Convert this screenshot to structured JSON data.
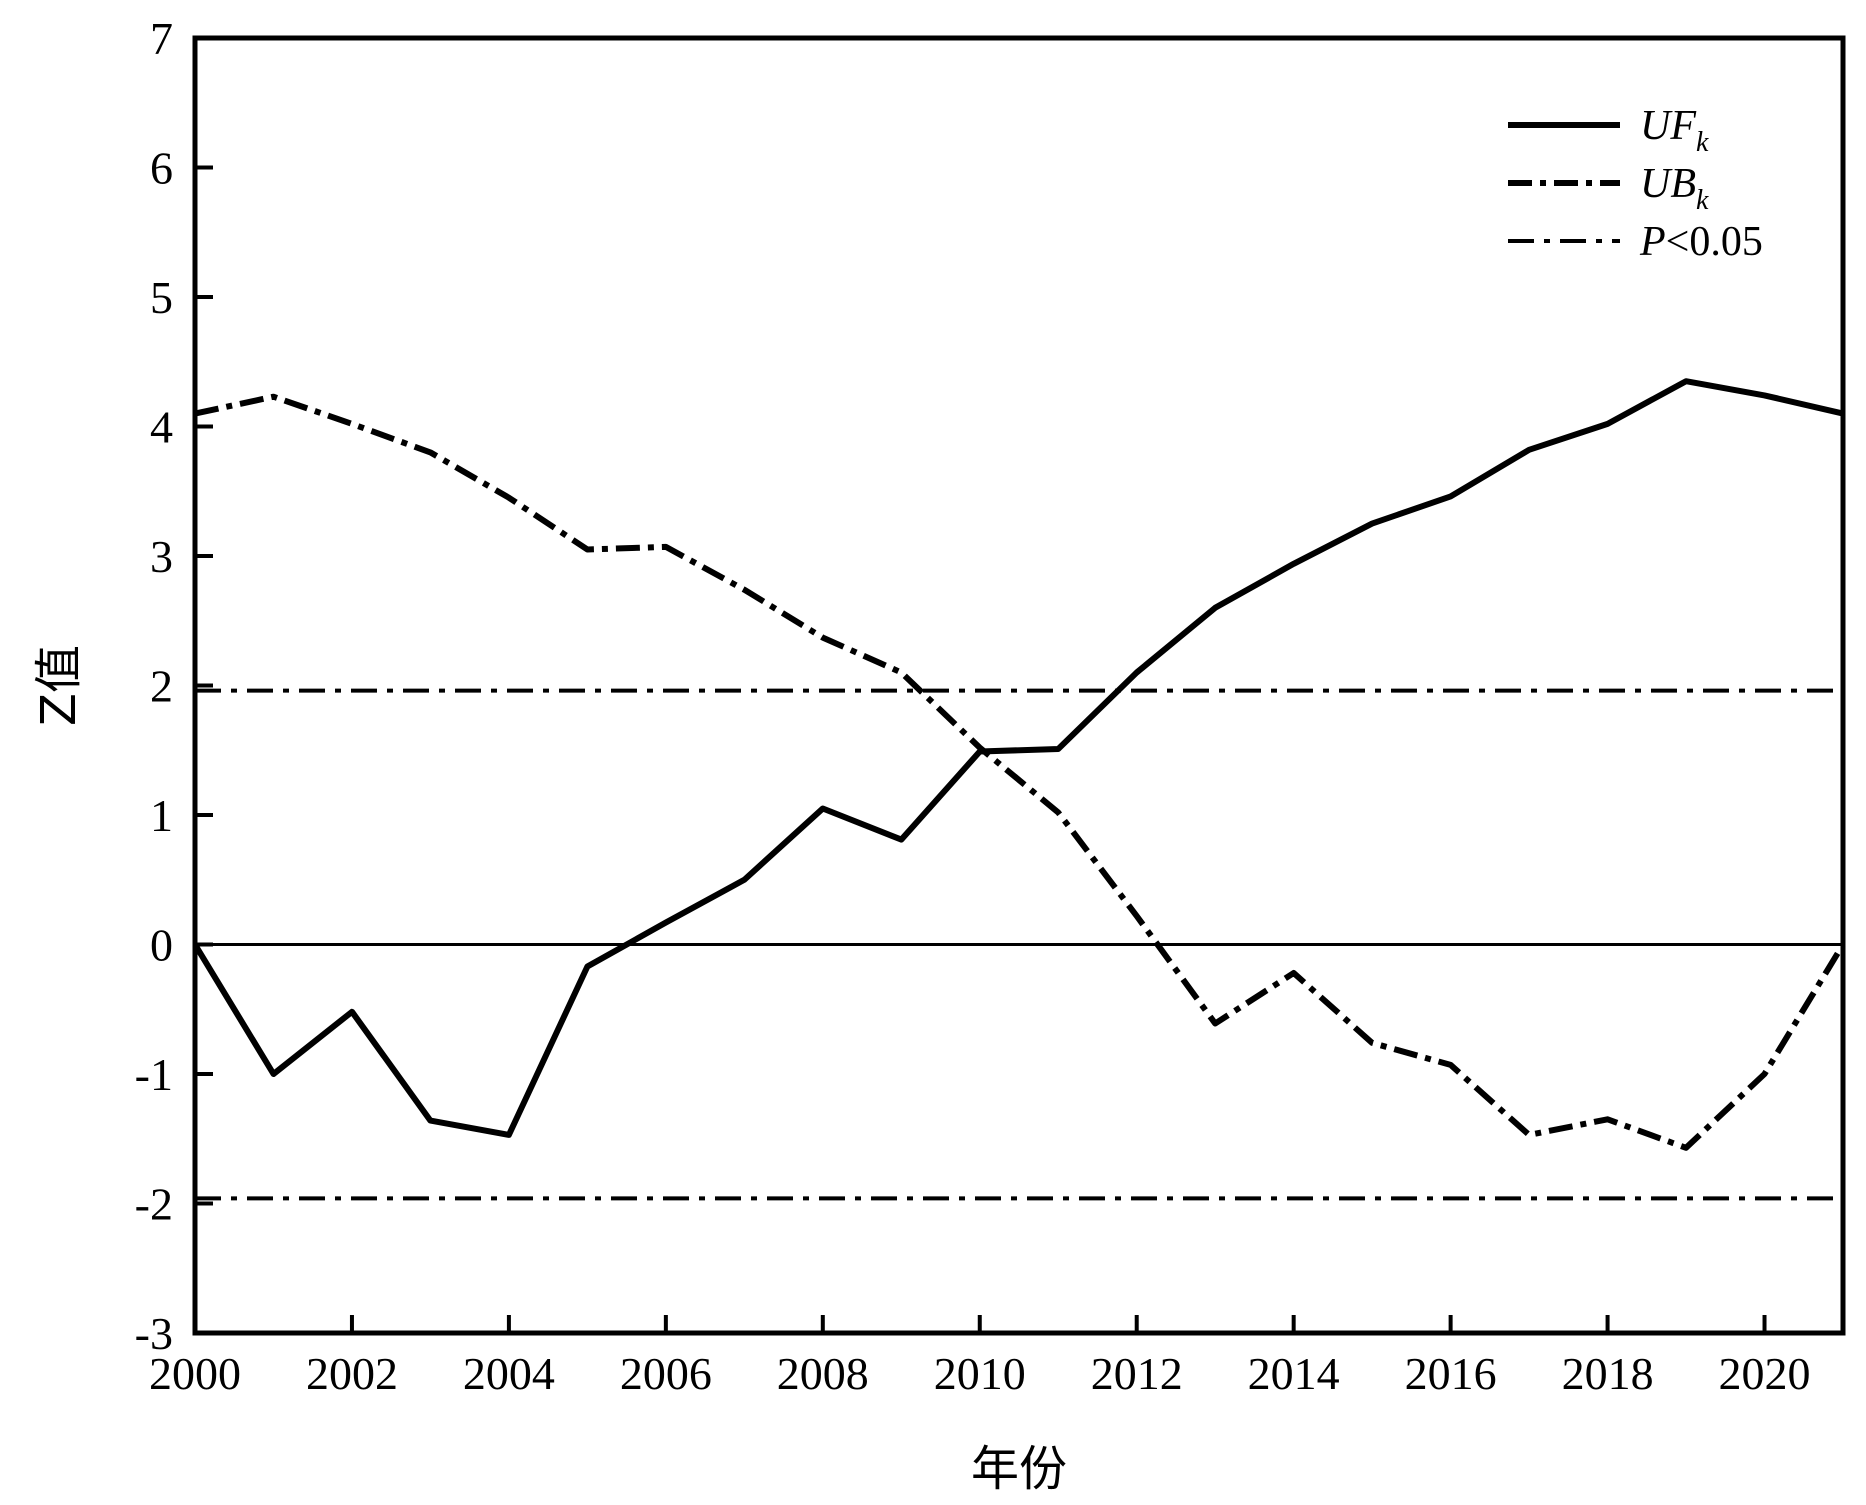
{
  "chart_data": {
    "type": "line",
    "title": "",
    "xlabel": "年份",
    "ylabel": "Z值",
    "xlim": [
      2000,
      2021
    ],
    "ylim": [
      -3,
      7
    ],
    "xticks": [
      2000,
      2002,
      2004,
      2006,
      2008,
      2010,
      2012,
      2014,
      2016,
      2018,
      2020
    ],
    "yticks": [
      -3,
      -2,
      -1,
      0,
      1,
      2,
      3,
      4,
      5,
      6,
      7
    ],
    "x": [
      2000,
      2001,
      2002,
      2003,
      2004,
      2005,
      2006,
      2007,
      2008,
      2009,
      2010,
      2011,
      2012,
      2013,
      2014,
      2015,
      2016,
      2017,
      2018,
      2019,
      2020,
      2021
    ],
    "grid": false,
    "legend_position": "top-right",
    "series": [
      {
        "name": "UF",
        "name_subscript": "k",
        "style": "solid",
        "values": [
          0,
          -1.0,
          -0.52,
          -1.36,
          -1.47,
          -0.17,
          0.17,
          0.5,
          1.05,
          0.81,
          1.49,
          1.51,
          2.1,
          2.6,
          2.94,
          3.25,
          3.46,
          3.82,
          4.02,
          4.35,
          4.24,
          4.1
        ]
      },
      {
        "name": "UB",
        "name_subscript": "k",
        "style": "dashed",
        "values": [
          4.1,
          4.23,
          4.02,
          3.8,
          3.45,
          3.05,
          3.07,
          2.74,
          2.37,
          2.1,
          1.52,
          1.02,
          0.22,
          -0.61,
          -0.22,
          -0.76,
          -0.93,
          -1.47,
          -1.35,
          -1.57,
          -1.0,
          0
        ]
      }
    ],
    "reference_lines": [
      {
        "name": "P<0.05",
        "style": "dashdot",
        "values": [
          1.96,
          -1.96
        ]
      },
      {
        "name": "",
        "style": "solid-thin",
        "values": [
          0
        ]
      }
    ]
  }
}
